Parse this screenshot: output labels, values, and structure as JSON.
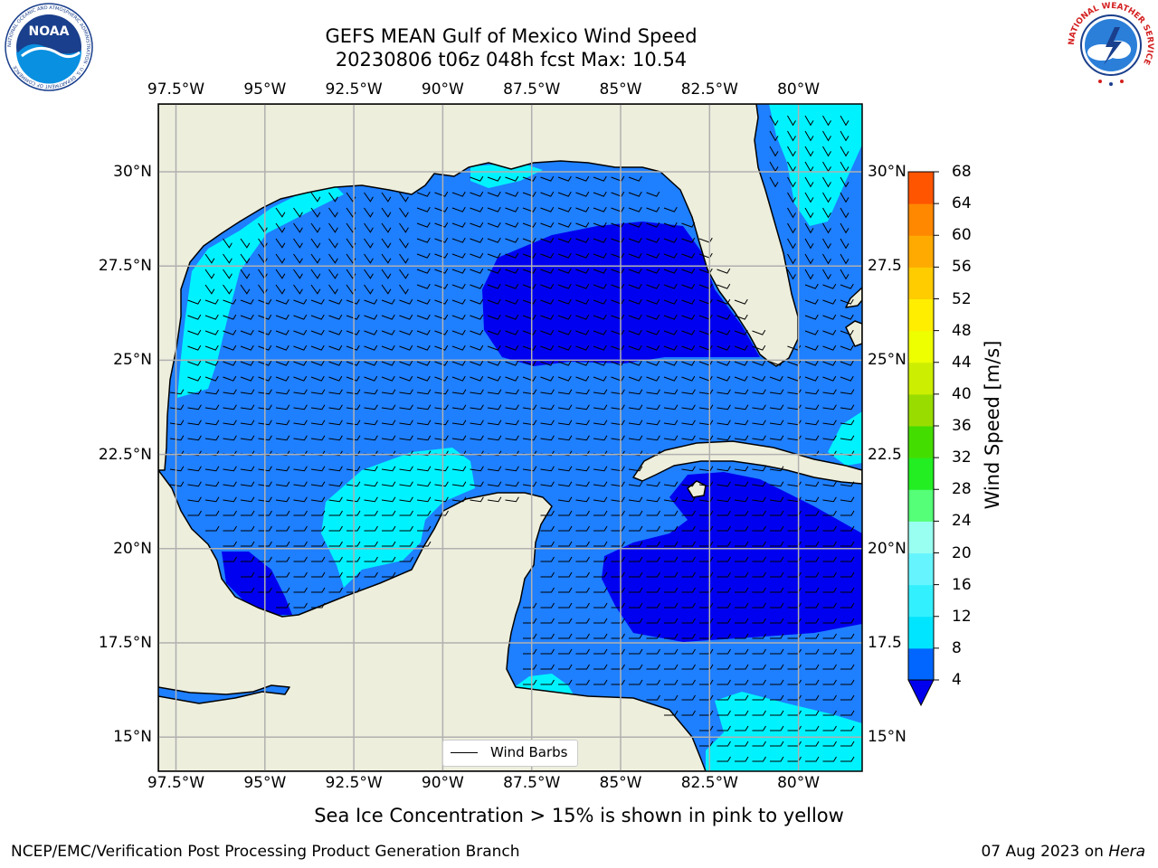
{
  "title_line1": "GEFS MEAN Gulf of Mexico Wind Speed",
  "title_line2": "20230806 t06z 048h fcst   Max: 10.54",
  "lon_ticks": [
    "97.5°W",
    "95°W",
    "92.5°W",
    "90°W",
    "87.5°W",
    "85°W",
    "82.5°W",
    "80°W"
  ],
  "lat_ticks": [
    "30°N",
    "27.5°N",
    "25°N",
    "22.5°N",
    "20°N",
    "17.5°N",
    "15°N"
  ],
  "lat_ticks_right": [
    "30°N",
    "27.5",
    "25°N",
    "22.5",
    "20°N",
    "17.5",
    "15°N"
  ],
  "colorbar": {
    "label": "Wind Speed [m/s]",
    "ticks": [
      "4",
      "8",
      "12",
      "16",
      "20",
      "24",
      "28",
      "32",
      "36",
      "40",
      "44",
      "48",
      "52",
      "56",
      "60",
      "64",
      "68"
    ],
    "colors": [
      "#0066ff",
      "#00e5ff",
      "#33f0ff",
      "#66f5ff",
      "#99fff0",
      "#55ff77",
      "#22ee22",
      "#44dd00",
      "#99dd00",
      "#ccee00",
      "#eeff00",
      "#ffee00",
      "#ffcc00",
      "#ffaa00",
      "#ff8800",
      "#ff5500",
      "#ff2200",
      "#ff0000"
    ],
    "under_color": "#0000ee"
  },
  "map_colors": {
    "land": "#eeeedd",
    "speed_4_8": "#1e7fff",
    "speed_below_4": "#0000f0",
    "speed_8_12": "#00f2ff",
    "grid": "#b0b0b0"
  },
  "legend_label": "Wind Barbs",
  "subtitle": "Sea Ice Concentration > 15% is shown in pink to yellow",
  "credit": "NCEP/EMC/Verification Post Processing Product Generation Branch",
  "date": "07 Aug 2023",
  "date_on": "on",
  "machine": "Hera",
  "logo_left_text": "NOAA",
  "logo_left_ring": "NATIONAL OCEANIC AND ATMOSPHERIC ADMINISTRATION · U.S. DEPARTMENT OF COMMERCE",
  "logo_right_ring": "NATIONAL WEATHER SERVICE"
}
